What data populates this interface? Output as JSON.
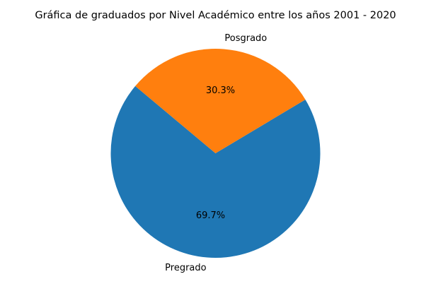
{
  "chart_data": {
    "type": "pie",
    "title": "Gráfica de graduados por Nivel Académico entre los años 2001 - 2020",
    "slices": [
      {
        "label": "Pregrado",
        "value": 69.7,
        "pct_label": "69.7%",
        "color": "#1f77b4"
      },
      {
        "label": "Posgrado",
        "value": 30.3,
        "pct_label": "30.3%",
        "color": "#ff7f0e"
      }
    ],
    "start_angle_deg": 140,
    "direction": "counterclockwise",
    "legend": "none"
  }
}
